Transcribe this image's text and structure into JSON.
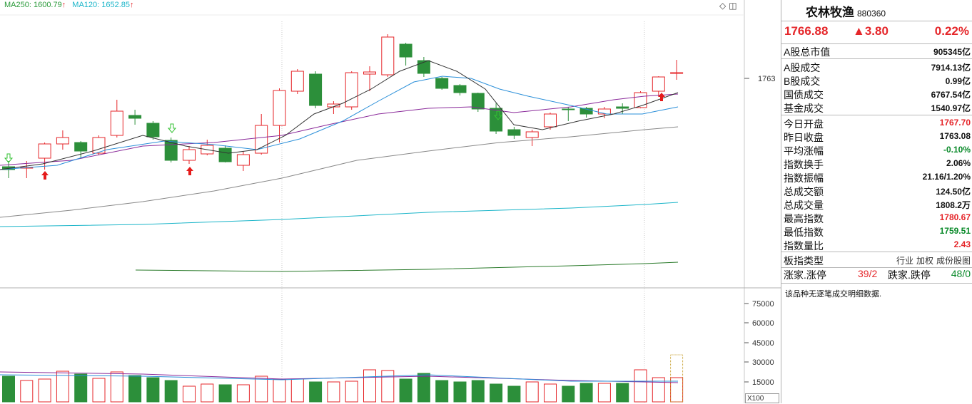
{
  "legend": {
    "ma250": {
      "label": "MA250: 1600.79",
      "arrow": "↑",
      "color": "#2a9a3a"
    },
    "ma120": {
      "label": "MA120: 1652.85",
      "arrow": "↑",
      "color": "#1bb5c9"
    }
  },
  "icons": {
    "diamond": "diamond-icon",
    "window": "window-icon"
  },
  "price_axis": {
    "marker_label": "1763"
  },
  "volume_axis": {
    "ticks": [
      "75000",
      "60000",
      "45000",
      "30000",
      "15000"
    ],
    "multiplier": "X100"
  },
  "colors": {
    "up": "#e5262a",
    "down": "#2c8f3a",
    "ma5": "#333333",
    "ma10": "#2a8fd9",
    "ma20": "#8a2a9a",
    "ma60": "#888888",
    "ma120": "#1bb5c9",
    "ma250": "#2a7a2a",
    "signal_up": "#e51b1b",
    "signal_down": "#33c233"
  },
  "panel": {
    "name": "农林牧渔",
    "code": "880360",
    "last": "1766.88",
    "change": "▲3.80",
    "pct": "0.22%",
    "rows_top": [
      {
        "label": "A股总市值",
        "value": "905345亿"
      }
    ],
    "rows_trade": [
      {
        "label": "A股成交",
        "value": "7914.13亿"
      },
      {
        "label": "B股成交",
        "value": "0.99亿"
      },
      {
        "label": "国债成交",
        "value": "6767.54亿"
      },
      {
        "label": "基金成交",
        "value": "1540.97亿"
      }
    ],
    "rows_stats": [
      {
        "label": "今日开盘",
        "value": "1767.70",
        "tone": "red"
      },
      {
        "label": "昨日收盘",
        "value": "1763.08",
        "tone": "blk"
      },
      {
        "label": "平均涨幅",
        "value": "-0.10%",
        "tone": "green"
      },
      {
        "label": "指数换手",
        "value": "2.06%",
        "tone": "blk"
      },
      {
        "label": "指数振幅",
        "value": "21.16/1.20%",
        "tone": "blk"
      },
      {
        "label": "总成交额",
        "value": "124.50亿",
        "tone": "blk"
      },
      {
        "label": "总成交量",
        "value": "1808.2万",
        "tone": "blk"
      },
      {
        "label": "最高指数",
        "value": "1780.67",
        "tone": "red"
      },
      {
        "label": "最低指数",
        "value": "1759.51",
        "tone": "green"
      },
      {
        "label": "指数量比",
        "value": "2.43",
        "tone": "red"
      }
    ],
    "type_row": {
      "label": "板指类型",
      "options": [
        "行业",
        "加权",
        "成份股图"
      ]
    },
    "updown": {
      "up_label": "涨家.涨停",
      "up_value": "39/2",
      "down_label": "跌家.跌停",
      "down_value": "48/0"
    },
    "note": "该品种无逐笔成交明细数据."
  }
}
